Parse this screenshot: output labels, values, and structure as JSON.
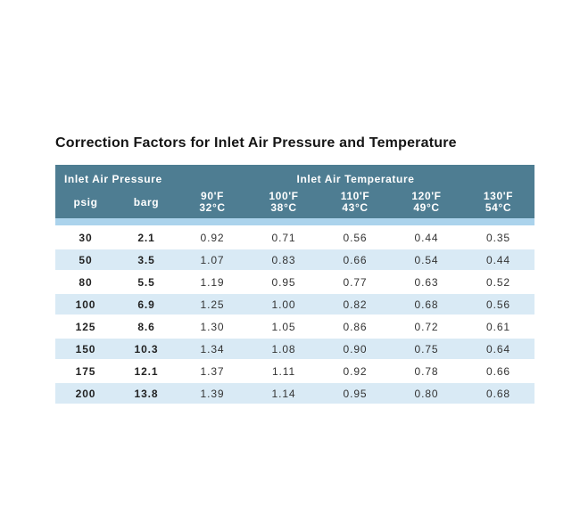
{
  "title": "Correction Factors for Inlet Air Pressure and Temperature",
  "table": {
    "group_headers": [
      {
        "label": "Inlet Air Pressure",
        "colspan": 2
      },
      {
        "label": "Inlet Air Temperature",
        "colspan": 5
      }
    ],
    "sub_headers": [
      {
        "lines": [
          "psig"
        ]
      },
      {
        "lines": [
          "barg"
        ]
      },
      {
        "lines": [
          "90'F",
          "32°C"
        ]
      },
      {
        "lines": [
          "100'F",
          "38°C"
        ]
      },
      {
        "lines": [
          "110'F",
          "43°C"
        ]
      },
      {
        "lines": [
          "120'F",
          "49°C"
        ]
      },
      {
        "lines": [
          "130'F",
          "54°C"
        ]
      }
    ],
    "rows": [
      [
        "30",
        "2.1",
        "0.92",
        "0.71",
        "0.56",
        "0.44",
        "0.35"
      ],
      [
        "50",
        "3.5",
        "1.07",
        "0.83",
        "0.66",
        "0.54",
        "0.44"
      ],
      [
        "80",
        "5.5",
        "1.19",
        "0.95",
        "0.77",
        "0.63",
        "0.52"
      ],
      [
        "100",
        "6.9",
        "1.25",
        "1.00",
        "0.82",
        "0.68",
        "0.56"
      ],
      [
        "125",
        "8.6",
        "1.30",
        "1.05",
        "0.86",
        "0.72",
        "0.61"
      ],
      [
        "150",
        "10.3",
        "1.34",
        "1.08",
        "0.90",
        "0.75",
        "0.64"
      ],
      [
        "175",
        "12.1",
        "1.37",
        "1.11",
        "0.92",
        "0.78",
        "0.66"
      ],
      [
        "200",
        "13.8",
        "1.39",
        "1.14",
        "0.95",
        "0.80",
        "0.68"
      ]
    ],
    "colors": {
      "header_bg": "#4e7d92",
      "header_text": "#ffffff",
      "separator_strip": "#abd3ec",
      "stripe_bg": "#d9eaf5",
      "row_bg": "#ffffff",
      "data_text": "#333333",
      "title_text": "#151515"
    }
  }
}
